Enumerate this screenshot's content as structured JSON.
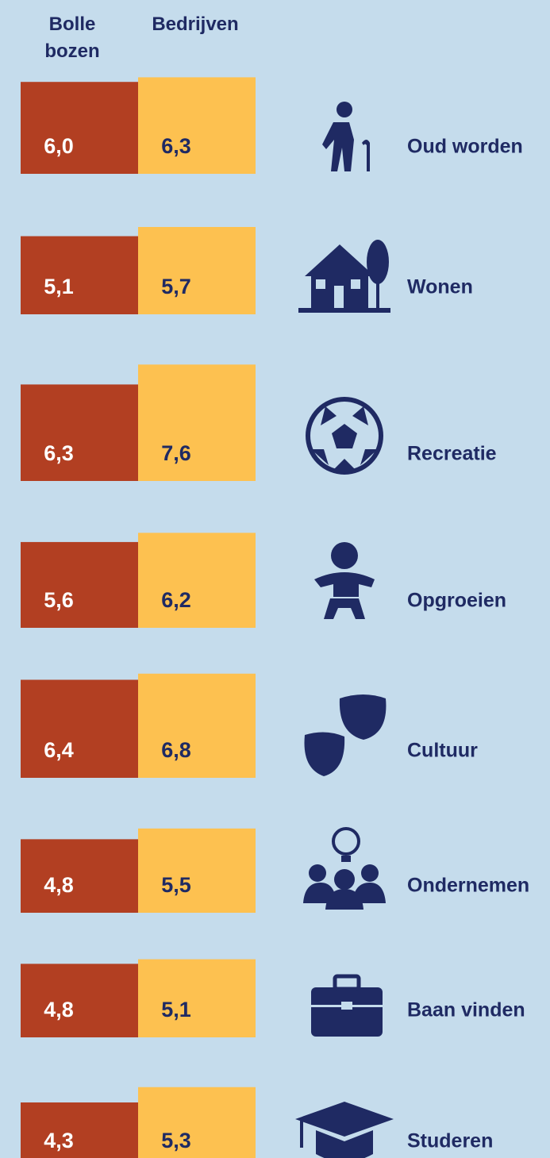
{
  "chart_data": {
    "type": "bar",
    "categories": [
      "Oud worden",
      "Wonen",
      "Recreatie",
      "Opgroeien",
      "Cultuur",
      "Ondernemen",
      "Baan vinden",
      "Studeren"
    ],
    "series": [
      {
        "name": "Bolle bozen",
        "color": "#b23f22",
        "values": [
          6.0,
          5.1,
          6.3,
          5.6,
          6.4,
          4.8,
          4.8,
          4.3
        ],
        "value_labels": [
          "6,0",
          "5,1",
          "6,3",
          "5,6",
          "6,4",
          "4,8",
          "4,8",
          "4,3"
        ]
      },
      {
        "name": "Bedrijven",
        "color": "#fdc150",
        "values": [
          6.3,
          5.7,
          7.6,
          6.2,
          6.8,
          5.5,
          5.1,
          5.3
        ],
        "value_labels": [
          "6,3",
          "5,7",
          "7,6",
          "6,2",
          "6,8",
          "5,5",
          "5,1",
          "5,3"
        ]
      }
    ]
  }
}
